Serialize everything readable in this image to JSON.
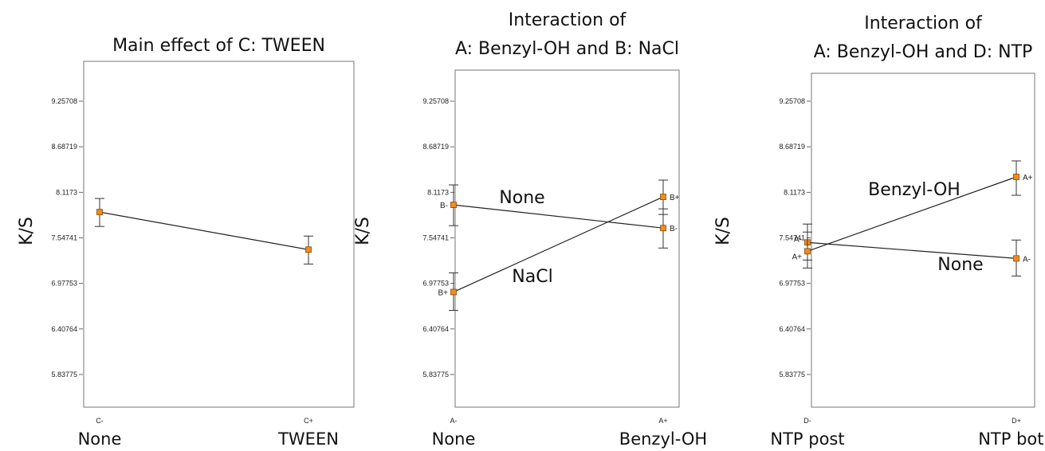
{
  "colors": {
    "marker": "#f08c1e",
    "marker_stroke": "#8a4a00",
    "line": "#222222",
    "frame": "#555555"
  },
  "y_ticks": [
    "9.25708",
    "8.68719",
    "8.1173",
    "7.54741",
    "6.97753",
    "6.40764",
    "5.83775"
  ],
  "chart_data": [
    {
      "type": "line",
      "title_lines": [
        "Main effect of C: TWEEN"
      ],
      "ylabel": "K/S",
      "ylim": [
        5.6,
        9.6
      ],
      "categories": [
        "C-",
        "C+"
      ],
      "category_labels": [
        "None",
        "TWEEN"
      ],
      "series": [
        {
          "name": "",
          "values": [
            7.87,
            7.4
          ],
          "lower": [
            7.69,
            7.22
          ],
          "upper": [
            8.04,
            7.57
          ],
          "point_labels": [
            "",
            ""
          ]
        }
      ],
      "annotations": []
    },
    {
      "type": "line",
      "title_lines": [
        "Interaction of",
        "A: Benzyl-OH and B: NaCl"
      ],
      "ylabel": "K/S",
      "ylim": [
        5.6,
        9.6
      ],
      "categories": [
        "A-",
        "A+"
      ],
      "category_labels": [
        "None",
        "Benzyl-OH"
      ],
      "series": [
        {
          "name": "None",
          "values": [
            7.96,
            7.67
          ],
          "lower": [
            7.7,
            7.42
          ],
          "upper": [
            8.21,
            7.91
          ],
          "point_labels": [
            "B-",
            "B-"
          ]
        },
        {
          "name": "NaCl",
          "values": [
            6.87,
            8.06
          ],
          "lower": [
            6.64,
            7.84
          ],
          "upper": [
            7.11,
            8.27
          ],
          "point_labels": [
            "B+",
            "B+"
          ]
        }
      ],
      "annotations": [
        "None",
        "NaCl"
      ]
    },
    {
      "type": "line",
      "title_lines": [
        "Interaction of",
        "A: Benzyl-OH and D: NTP"
      ],
      "ylabel": "K/S",
      "ylim": [
        5.6,
        9.6
      ],
      "categories": [
        "D-",
        "D+"
      ],
      "category_labels": [
        "NTP post",
        "NTP both"
      ],
      "series": [
        {
          "name": "None",
          "values": [
            7.49,
            7.29
          ],
          "lower": [
            7.27,
            7.07
          ],
          "upper": [
            7.72,
            7.52
          ],
          "point_labels": [
            "A-",
            "A-"
          ]
        },
        {
          "name": "Benzyl-OH",
          "values": [
            7.38,
            8.31
          ],
          "lower": [
            7.17,
            8.08
          ],
          "upper": [
            7.62,
            8.51
          ],
          "point_labels": [
            "A+",
            "A+"
          ]
        }
      ],
      "annotations": [
        "Benzyl-OH",
        "None"
      ]
    }
  ]
}
